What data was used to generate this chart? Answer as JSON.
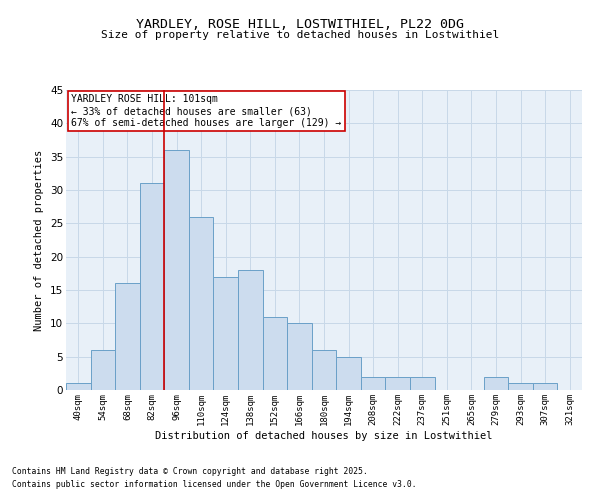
{
  "title_line1": "YARDLEY, ROSE HILL, LOSTWITHIEL, PL22 0DG",
  "title_line2": "Size of property relative to detached houses in Lostwithiel",
  "xlabel": "Distribution of detached houses by size in Lostwithiel",
  "ylabel": "Number of detached properties",
  "bins": [
    "40sqm",
    "54sqm",
    "68sqm",
    "82sqm",
    "96sqm",
    "110sqm",
    "124sqm",
    "138sqm",
    "152sqm",
    "166sqm",
    "180sqm",
    "194sqm",
    "208sqm",
    "222sqm",
    "237sqm",
    "251sqm",
    "265sqm",
    "279sqm",
    "293sqm",
    "307sqm",
    "321sqm"
  ],
  "bar_heights": [
    1,
    6,
    16,
    31,
    36,
    26,
    17,
    18,
    11,
    10,
    6,
    5,
    2,
    2,
    2,
    0,
    0,
    2,
    1,
    1,
    0
  ],
  "bar_color": "#ccdcee",
  "bar_edge_color": "#6aa0c8",
  "grid_color": "#c8d8e8",
  "background_color": "#e8f0f8",
  "vline_color": "#cc0000",
  "vline_x_index": 4,
  "annotation_text": "YARDLEY ROSE HILL: 101sqm\n← 33% of detached houses are smaller (63)\n67% of semi-detached houses are larger (129) →",
  "annotation_box_color": "#ffffff",
  "annotation_border_color": "#cc0000",
  "ylim": [
    0,
    45
  ],
  "yticks": [
    0,
    5,
    10,
    15,
    20,
    25,
    30,
    35,
    40,
    45
  ],
  "footnote1": "Contains HM Land Registry data © Crown copyright and database right 2025.",
  "footnote2": "Contains public sector information licensed under the Open Government Licence v3.0."
}
